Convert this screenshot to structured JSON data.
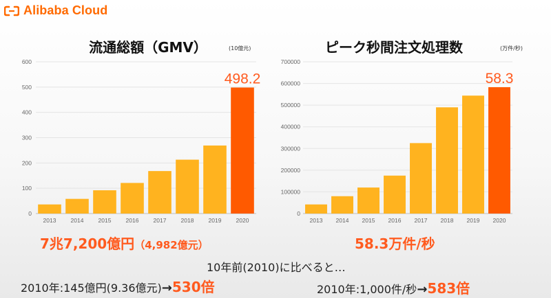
{
  "brand": {
    "name": "Alibaba Cloud",
    "color": "#ff6a00"
  },
  "colors": {
    "bar": "#ffb31f",
    "highlight": "#ff5a00",
    "accent_text": "#ff5a1e"
  },
  "chart_data": [
    {
      "type": "bar",
      "title": "流通総額（GMV）",
      "unit": "(10億元)",
      "categories": [
        "2013",
        "2014",
        "2015",
        "2016",
        "2017",
        "2018",
        "2019",
        "2020"
      ],
      "values": [
        36,
        58,
        92,
        121,
        168,
        213,
        269,
        498.2
      ],
      "ylim": [
        0,
        600
      ],
      "yticks": [
        "0",
        "100",
        "200",
        "300",
        "400",
        "500",
        "600"
      ],
      "yticks_values": [
        0,
        100,
        200,
        300,
        400,
        500,
        600
      ],
      "highlight_index": 7,
      "data_label": "498.2",
      "grid": true
    },
    {
      "type": "bar",
      "title": "ピーク秒間注文処理数",
      "unit": "(万件/秒)",
      "categories": [
        "2013",
        "2014",
        "2015",
        "2016",
        "2017",
        "2018",
        "2019",
        "2020"
      ],
      "values": [
        42000,
        80000,
        120000,
        175000,
        325000,
        490000,
        544000,
        583000
      ],
      "ylim": [
        0,
        700000
      ],
      "yticks": [
        "0",
        "100000",
        "200000",
        "300000",
        "400000",
        "500000",
        "600000",
        "700000"
      ],
      "yticks_values": [
        0,
        100000,
        200000,
        300000,
        400000,
        500000,
        600000,
        700000
      ],
      "highlight_index": 7,
      "data_label": "58.3",
      "grid": true
    }
  ],
  "summary": {
    "left_main": "7兆7,200億円",
    "left_sub": "（4,982億元）",
    "right_main": "58.3万件/秒"
  },
  "comparison": {
    "header": "10年前(2010)に比べると…",
    "left_base": "2010年:145億円(9.36億元)",
    "left_arrow": "→",
    "left_multiplier": "530倍",
    "right_base": "2010年:1,000件/秒",
    "right_arrow": "→",
    "right_multiplier": "583倍"
  }
}
